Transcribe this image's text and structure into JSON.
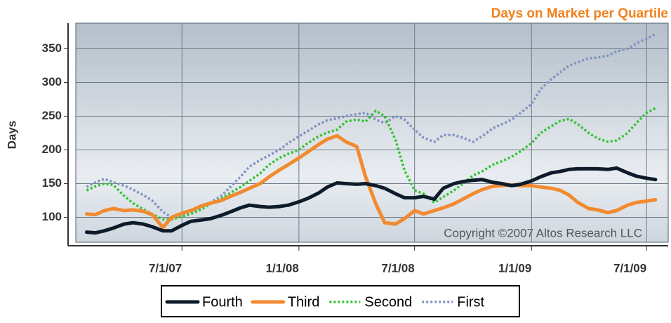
{
  "chart_data": {
    "type": "line",
    "title": "Days on Market per Quartile",
    "ylabel": "Days",
    "annotation": "Copyright ©2007 Altos Research LLC",
    "x": [
      "2/1/07",
      "2/15/07",
      "3/1/07",
      "3/15/07",
      "4/1/07",
      "4/15/07",
      "5/1/07",
      "5/15/07",
      "6/1/07",
      "6/15/07",
      "7/1/07",
      "7/15/07",
      "8/1/07",
      "8/15/07",
      "9/1/07",
      "9/15/07",
      "10/1/07",
      "10/15/07",
      "11/1/07",
      "11/15/07",
      "12/1/07",
      "12/15/07",
      "1/1/08",
      "1/15/08",
      "2/1/08",
      "2/15/08",
      "3/1/08",
      "3/15/08",
      "4/1/08",
      "4/15/08",
      "5/1/08",
      "5/15/08",
      "6/1/08",
      "6/15/08",
      "7/1/08",
      "7/15/08",
      "8/1/08",
      "8/15/08",
      "9/1/08",
      "9/15/08",
      "10/1/08",
      "10/15/08",
      "11/1/08",
      "11/15/08",
      "12/1/08",
      "12/15/08",
      "1/1/09",
      "1/15/09",
      "2/1/09",
      "2/15/09",
      "3/1/09",
      "3/15/09",
      "4/1/09",
      "4/15/09",
      "5/1/09",
      "5/15/09",
      "6/1/09",
      "6/15/09",
      "7/1/09",
      "7/15/09"
    ],
    "series": [
      {
        "name": "Fourth",
        "color": "#0d1b2a",
        "style": "solid",
        "values": [
          78,
          77,
          80,
          84,
          90,
          92,
          90,
          86,
          80,
          80,
          88,
          94,
          96,
          98,
          103,
          108,
          114,
          118,
          116,
          115,
          116,
          118,
          123,
          128,
          136,
          145,
          151,
          150,
          149,
          150,
          147,
          143,
          135,
          129,
          129,
          131,
          127,
          143,
          150,
          153,
          155,
          156,
          152,
          150,
          147,
          149,
          154,
          160,
          166,
          168,
          171,
          172,
          172,
          172,
          171,
          173,
          166,
          161,
          158,
          156
        ]
      },
      {
        "name": "Third",
        "color": "#f28a30",
        "style": "solid",
        "values": [
          105,
          104,
          110,
          113,
          110,
          111,
          109,
          104,
          85,
          100,
          106,
          110,
          117,
          121,
          125,
          131,
          137,
          143,
          150,
          160,
          170,
          178,
          188,
          197,
          208,
          216,
          221,
          212,
          205,
          160,
          120,
          92,
          90,
          98,
          110,
          105,
          110,
          114,
          120,
          127,
          135,
          141,
          146,
          147,
          148,
          147,
          147,
          145,
          143,
          140,
          133,
          122,
          113,
          111,
          107,
          110,
          118,
          122,
          124,
          126
        ]
      },
      {
        "name": "Second",
        "color": "#33c233",
        "style": "dotted",
        "values": [
          140,
          146,
          150,
          148,
          132,
          121,
          112,
          105,
          97,
          97,
          101,
          105,
          112,
          120,
          128,
          136,
          145,
          154,
          165,
          178,
          188,
          194,
          200,
          210,
          220,
          226,
          230,
          242,
          245,
          242,
          258,
          250,
          215,
          170,
          140,
          135,
          122,
          130,
          140,
          150,
          162,
          168,
          178,
          183,
          190,
          198,
          210,
          225,
          235,
          243,
          246,
          238,
          225,
          217,
          212,
          214,
          225,
          240,
          255,
          262
        ]
      },
      {
        "name": "First",
        "color": "#7f93bf",
        "style": "dotted",
        "values": [
          145,
          152,
          157,
          152,
          147,
          141,
          133,
          125,
          108,
          100,
          103,
          108,
          115,
          122,
          132,
          145,
          160,
          175,
          185,
          192,
          200,
          210,
          220,
          228,
          238,
          244,
          247,
          250,
          253,
          255,
          245,
          240,
          250,
          245,
          230,
          218,
          212,
          222,
          222,
          218,
          212,
          220,
          232,
          238,
          245,
          255,
          268,
          290,
          305,
          315,
          325,
          330,
          336,
          337,
          340,
          346,
          350,
          358,
          365,
          372
        ]
      }
    ],
    "xlim": [
      "1/15/07",
      "8/4/09"
    ],
    "xticks": [
      "7/1/07",
      "1/1/08",
      "7/1/08",
      "1/1/09",
      "7/1/09"
    ],
    "ylim": [
      63,
      388
    ],
    "yticks": [
      100,
      150,
      200,
      250,
      300,
      350
    ],
    "grid": true
  }
}
